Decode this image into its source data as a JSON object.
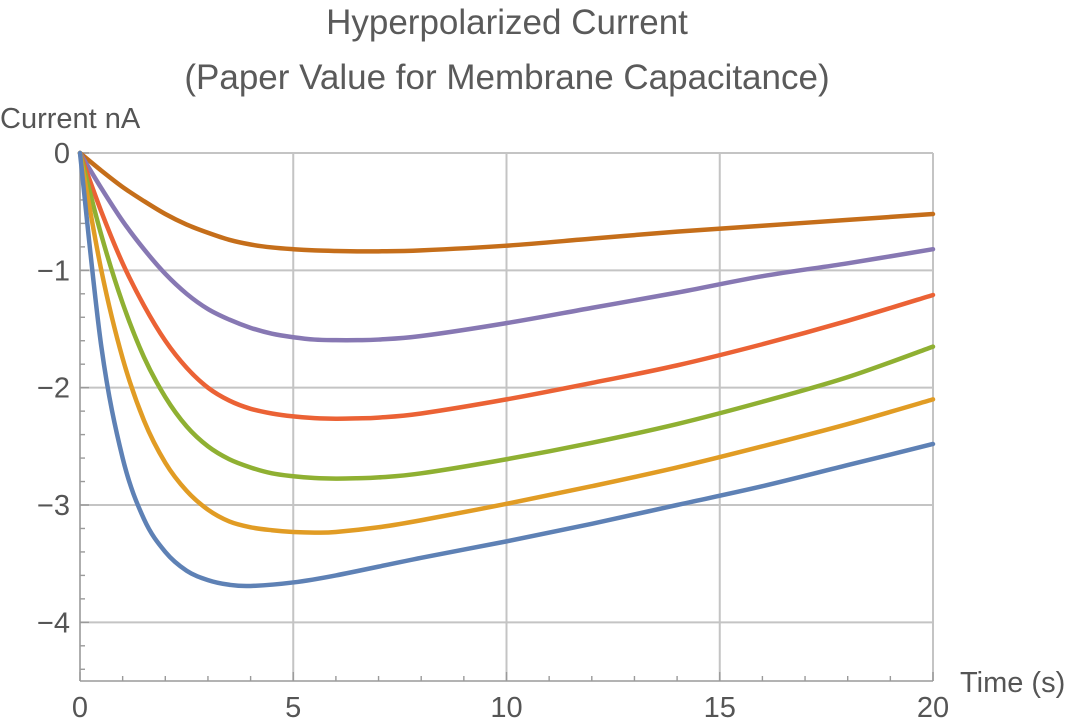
{
  "chart_data": {
    "type": "line",
    "title": "Hyperpolarized Current",
    "subtitle": "(Paper Value for Membrane Capacitance)",
    "xlabel": "Time (s)",
    "ylabel": "Current nA",
    "xlim": [
      0,
      20
    ],
    "ylim": [
      -4.5,
      0
    ],
    "xticks": [
      0,
      5,
      10,
      15,
      20
    ],
    "yticks": [
      0,
      -1,
      -2,
      -3,
      -4
    ],
    "xtick_labels": [
      "0",
      "5",
      "10",
      "15",
      "20"
    ],
    "ytick_labels": [
      "0",
      "−1",
      "−2",
      "−3",
      "−4"
    ],
    "grid": true,
    "legend": "none",
    "series": [
      {
        "color": "#5e81b5",
        "x": [
          0,
          0.5,
          1,
          1.5,
          2,
          2.5,
          3,
          3.5,
          4,
          5,
          6,
          8,
          10,
          12,
          14,
          16,
          18,
          20
        ],
        "y": [
          0,
          -1.65,
          -2.6,
          -3.12,
          -3.4,
          -3.56,
          -3.64,
          -3.68,
          -3.69,
          -3.66,
          -3.6,
          -3.45,
          -3.31,
          -3.16,
          -3.0,
          -2.84,
          -2.66,
          -2.48
        ]
      },
      {
        "color": "#e19c24",
        "x": [
          0,
          0.5,
          1,
          1.5,
          2,
          2.5,
          3,
          3.5,
          4,
          4.5,
          5,
          5.5,
          6,
          7,
          8,
          10,
          12,
          14,
          16,
          18,
          20
        ],
        "y": [
          0,
          -1.0,
          -1.75,
          -2.28,
          -2.64,
          -2.88,
          -3.04,
          -3.14,
          -3.19,
          -3.215,
          -3.23,
          -3.235,
          -3.23,
          -3.19,
          -3.13,
          -2.99,
          -2.84,
          -2.68,
          -2.5,
          -2.31,
          -2.1
        ]
      },
      {
        "color": "#8fb032",
        "x": [
          0,
          0.5,
          1,
          1.5,
          2,
          2.5,
          3,
          3.5,
          4,
          4.5,
          5,
          5.5,
          6,
          6.5,
          7,
          8,
          10,
          12,
          14,
          16,
          18,
          20
        ],
        "y": [
          0,
          -0.7,
          -1.28,
          -1.74,
          -2.08,
          -2.33,
          -2.5,
          -2.61,
          -2.68,
          -2.73,
          -2.755,
          -2.77,
          -2.775,
          -2.772,
          -2.765,
          -2.73,
          -2.61,
          -2.47,
          -2.31,
          -2.12,
          -1.91,
          -1.65
        ]
      },
      {
        "color": "#eb6235",
        "x": [
          0,
          0.5,
          1,
          1.5,
          2,
          2.5,
          3,
          3.5,
          4,
          4.5,
          5,
          5.5,
          6,
          6.5,
          7,
          8,
          10,
          12,
          14,
          16,
          18,
          20
        ],
        "y": [
          0,
          -0.5,
          -0.94,
          -1.3,
          -1.6,
          -1.83,
          -2.0,
          -2.11,
          -2.18,
          -2.22,
          -2.245,
          -2.26,
          -2.265,
          -2.262,
          -2.255,
          -2.22,
          -2.1,
          -1.96,
          -1.81,
          -1.63,
          -1.43,
          -1.21
        ]
      },
      {
        "color": "#8778b3",
        "x": [
          0,
          0.5,
          1,
          1.5,
          2,
          2.5,
          3,
          3.5,
          4,
          4.5,
          5,
          5.5,
          6,
          6.5,
          7,
          8,
          10,
          12,
          14,
          16,
          18,
          20
        ],
        "y": [
          0,
          -0.3,
          -0.58,
          -0.82,
          -1.03,
          -1.2,
          -1.33,
          -1.42,
          -1.49,
          -1.54,
          -1.57,
          -1.59,
          -1.595,
          -1.595,
          -1.59,
          -1.56,
          -1.45,
          -1.32,
          -1.19,
          -1.05,
          -0.94,
          -0.82
        ]
      },
      {
        "color": "#c56e1a",
        "x": [
          0,
          0.5,
          1,
          1.5,
          2,
          2.5,
          3,
          3.5,
          4,
          4.5,
          5,
          5.5,
          6,
          6.5,
          7,
          8,
          10,
          12,
          14,
          16,
          18,
          20
        ],
        "y": [
          0,
          -0.15,
          -0.29,
          -0.41,
          -0.52,
          -0.61,
          -0.68,
          -0.74,
          -0.78,
          -0.805,
          -0.82,
          -0.83,
          -0.835,
          -0.838,
          -0.838,
          -0.83,
          -0.79,
          -0.73,
          -0.67,
          -0.62,
          -0.57,
          -0.52
        ]
      }
    ]
  }
}
